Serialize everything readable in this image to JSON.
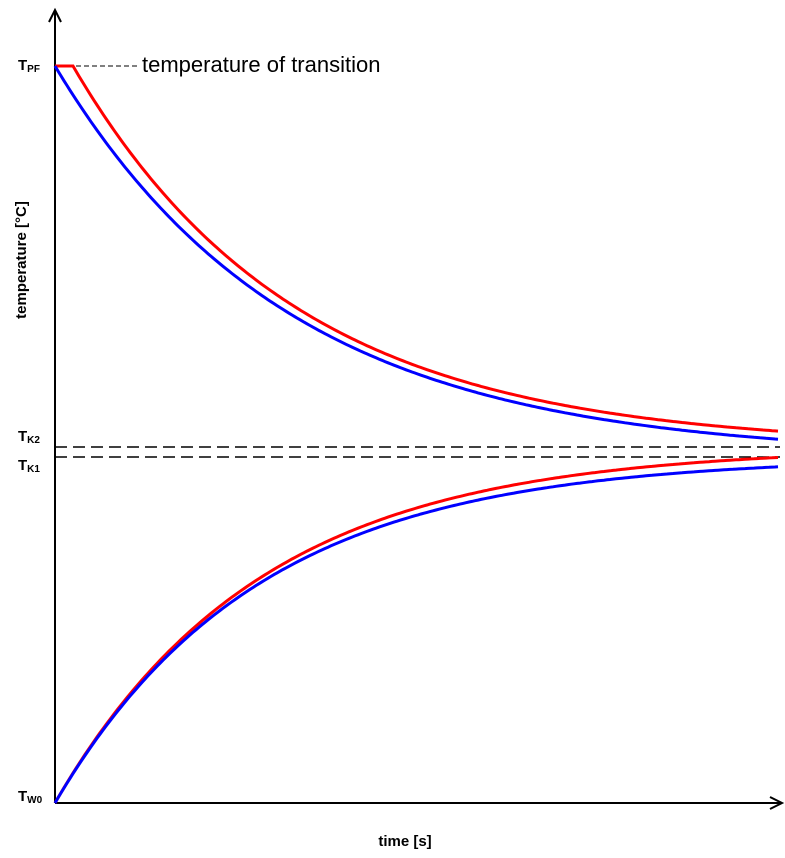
{
  "y_labels": [
    {
      "main": "T",
      "sub": "PF"
    },
    {
      "main": "T",
      "sub": "K2"
    },
    {
      "main": "T",
      "sub": "K1"
    },
    {
      "main": "T",
      "sub": "W0"
    }
  ],
  "annotation": "temperature of transition",
  "y_axis_title": "temperature  [°C]",
  "x_axis_title": "time  [s]"
}
